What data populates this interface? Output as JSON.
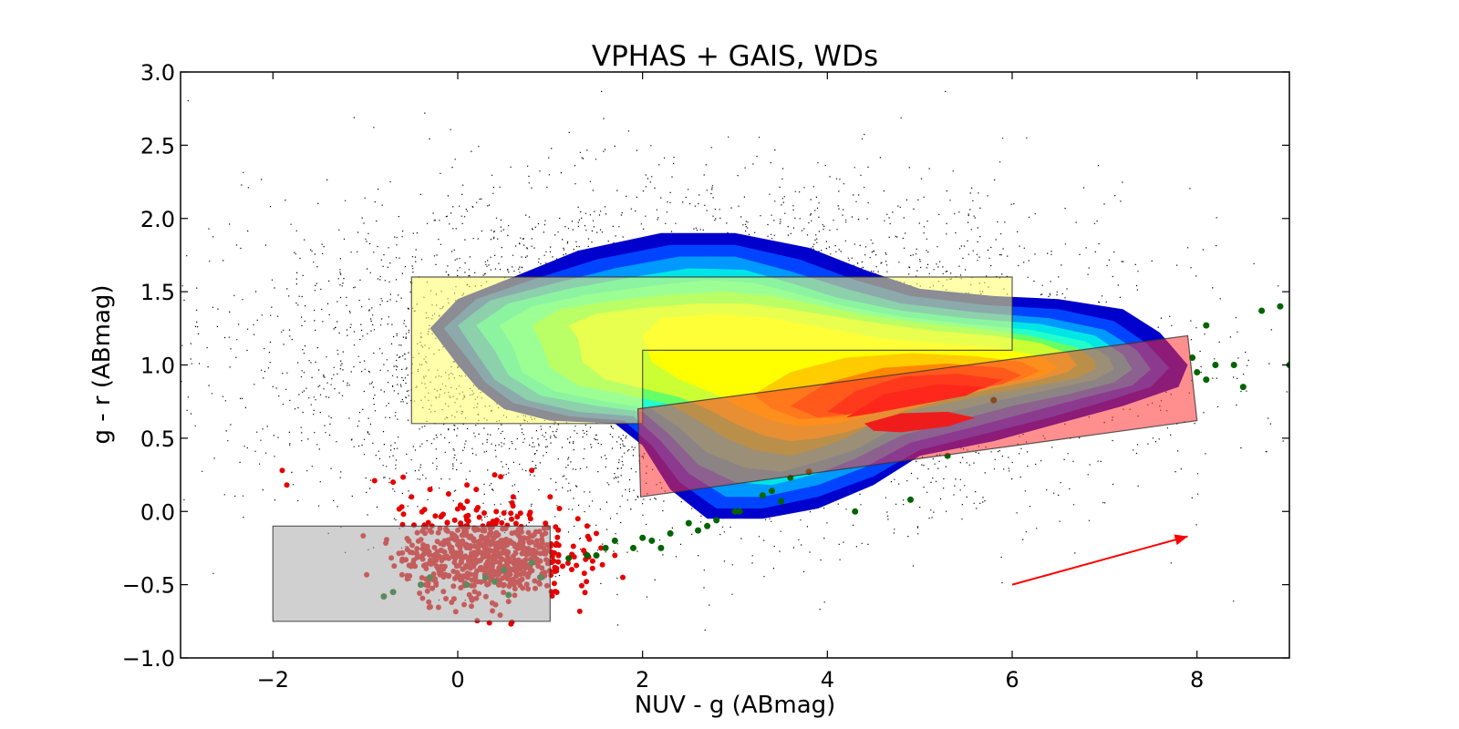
{
  "chart_data": {
    "type": "scatter",
    "title": "VPHAS + GAIS, WDs",
    "xlabel": "NUV - g (ABmag)",
    "ylabel": "g - r (ABmag)",
    "xlim": [
      -3,
      9
    ],
    "ylim": [
      -1.0,
      3.0
    ],
    "x_ticks": [
      -2,
      0,
      2,
      4,
      6,
      8
    ],
    "y_ticks": [
      -1.0,
      -0.5,
      0.0,
      0.5,
      1.0,
      1.5,
      2.0,
      2.5,
      3.0
    ],
    "x_tick_labels": [
      "−2",
      "0",
      "2",
      "4",
      "6",
      "8"
    ],
    "y_tick_labels": [
      "−1.0",
      "−0.5",
      "0.0",
      "0.5",
      "1.0",
      "1.5",
      "2.0",
      "2.5",
      "3.0"
    ],
    "grid": false,
    "legend": "none",
    "colors": {
      "background_points": "#000000",
      "red_points": "#e60000",
      "green_points": "#006400",
      "contour_levels": [
        "#0000cc",
        "#0044ff",
        "#0099ff",
        "#00e6e6",
        "#22ffcc",
        "#66ff66",
        "#ccff33",
        "#ffff00",
        "#ffcc00",
        "#ff8800",
        "#ff4400",
        "#ff1a00",
        "#dd0000"
      ],
      "yellow_box": "#ffff66",
      "grey_box": "#aaaaaa",
      "red_box": "#ff3333",
      "reddening_arrow": "#ff0000"
    },
    "density_contours": [
      [
        [
          0.0,
          1.0
        ],
        [
          -0.3,
          1.25
        ],
        [
          0.0,
          1.45
        ],
        [
          0.6,
          1.6
        ],
        [
          1.3,
          1.78
        ],
        [
          2.2,
          1.9
        ],
        [
          3.0,
          1.9
        ],
        [
          3.8,
          1.8
        ],
        [
          4.4,
          1.65
        ],
        [
          5.0,
          1.52
        ],
        [
          5.8,
          1.47
        ],
        [
          6.5,
          1.45
        ],
        [
          7.2,
          1.38
        ],
        [
          7.6,
          1.22
        ],
        [
          7.9,
          1.0
        ],
        [
          7.8,
          0.85
        ],
        [
          7.2,
          0.72
        ],
        [
          6.5,
          0.6
        ],
        [
          5.8,
          0.48
        ],
        [
          5.0,
          0.38
        ],
        [
          4.5,
          0.18
        ],
        [
          3.9,
          0.02
        ],
        [
          3.3,
          -0.05
        ],
        [
          2.7,
          -0.05
        ],
        [
          2.3,
          0.15
        ],
        [
          2.0,
          0.45
        ],
        [
          1.7,
          0.6
        ],
        [
          1.0,
          0.62
        ],
        [
          0.5,
          0.7
        ],
        [
          0.2,
          0.85
        ]
      ],
      [
        [
          0.1,
          1.05
        ],
        [
          -0.15,
          1.25
        ],
        [
          0.2,
          1.45
        ],
        [
          0.8,
          1.58
        ],
        [
          1.5,
          1.72
        ],
        [
          2.3,
          1.82
        ],
        [
          3.0,
          1.82
        ],
        [
          3.7,
          1.72
        ],
        [
          4.3,
          1.58
        ],
        [
          4.9,
          1.47
        ],
        [
          5.7,
          1.41
        ],
        [
          6.5,
          1.38
        ],
        [
          7.1,
          1.3
        ],
        [
          7.45,
          1.15
        ],
        [
          7.7,
          0.98
        ],
        [
          7.5,
          0.85
        ],
        [
          7.0,
          0.75
        ],
        [
          6.4,
          0.64
        ],
        [
          5.7,
          0.53
        ],
        [
          5.0,
          0.42
        ],
        [
          4.5,
          0.24
        ],
        [
          3.9,
          0.1
        ],
        [
          3.3,
          0.02
        ],
        [
          2.8,
          0.02
        ],
        [
          2.4,
          0.2
        ],
        [
          2.1,
          0.45
        ],
        [
          1.8,
          0.62
        ],
        [
          1.2,
          0.65
        ],
        [
          0.6,
          0.74
        ],
        [
          0.3,
          0.88
        ]
      ],
      [
        [
          0.2,
          1.08
        ],
        [
          0.0,
          1.27
        ],
        [
          0.35,
          1.44
        ],
        [
          1.0,
          1.55
        ],
        [
          1.7,
          1.66
        ],
        [
          2.4,
          1.74
        ],
        [
          3.0,
          1.74
        ],
        [
          3.6,
          1.64
        ],
        [
          4.2,
          1.52
        ],
        [
          4.8,
          1.42
        ],
        [
          5.6,
          1.36
        ],
        [
          6.4,
          1.32
        ],
        [
          7.0,
          1.24
        ],
        [
          7.35,
          1.1
        ],
        [
          7.5,
          0.97
        ],
        [
          7.3,
          0.86
        ],
        [
          6.8,
          0.78
        ],
        [
          6.2,
          0.68
        ],
        [
          5.6,
          0.58
        ],
        [
          4.9,
          0.47
        ],
        [
          4.4,
          0.3
        ],
        [
          3.9,
          0.18
        ],
        [
          3.3,
          0.1
        ],
        [
          2.9,
          0.1
        ],
        [
          2.5,
          0.26
        ],
        [
          2.2,
          0.48
        ],
        [
          1.9,
          0.65
        ],
        [
          1.3,
          0.68
        ],
        [
          0.75,
          0.76
        ],
        [
          0.4,
          0.9
        ]
      ],
      [
        [
          0.4,
          1.1
        ],
        [
          0.2,
          1.27
        ],
        [
          0.55,
          1.42
        ],
        [
          1.2,
          1.52
        ],
        [
          1.9,
          1.6
        ],
        [
          2.5,
          1.66
        ],
        [
          3.1,
          1.65
        ],
        [
          3.6,
          1.56
        ],
        [
          4.1,
          1.46
        ],
        [
          4.8,
          1.37
        ],
        [
          5.5,
          1.32
        ],
        [
          6.3,
          1.28
        ],
        [
          6.9,
          1.2
        ],
        [
          7.2,
          1.07
        ],
        [
          7.3,
          0.97
        ],
        [
          7.1,
          0.88
        ],
        [
          6.6,
          0.8
        ],
        [
          6.0,
          0.72
        ],
        [
          5.4,
          0.62
        ],
        [
          4.8,
          0.52
        ],
        [
          4.3,
          0.36
        ],
        [
          3.9,
          0.26
        ],
        [
          3.4,
          0.18
        ],
        [
          3.0,
          0.2
        ],
        [
          2.6,
          0.32
        ],
        [
          2.3,
          0.52
        ],
        [
          2.0,
          0.68
        ],
        [
          1.5,
          0.72
        ],
        [
          0.9,
          0.79
        ],
        [
          0.55,
          0.93
        ]
      ],
      [
        [
          0.6,
          1.12
        ],
        [
          0.45,
          1.27
        ],
        [
          0.8,
          1.4
        ],
        [
          1.4,
          1.48
        ],
        [
          2.1,
          1.54
        ],
        [
          2.7,
          1.58
        ],
        [
          3.2,
          1.56
        ],
        [
          3.7,
          1.48
        ],
        [
          4.2,
          1.4
        ],
        [
          4.8,
          1.33
        ],
        [
          5.5,
          1.28
        ],
        [
          6.2,
          1.24
        ],
        [
          6.8,
          1.16
        ],
        [
          7.05,
          1.05
        ],
        [
          7.1,
          0.97
        ],
        [
          6.9,
          0.9
        ],
        [
          6.4,
          0.83
        ],
        [
          5.8,
          0.75
        ],
        [
          5.2,
          0.66
        ],
        [
          4.7,
          0.56
        ],
        [
          4.3,
          0.42
        ],
        [
          3.9,
          0.34
        ],
        [
          3.5,
          0.27
        ],
        [
          3.1,
          0.3
        ],
        [
          2.7,
          0.4
        ],
        [
          2.4,
          0.57
        ],
        [
          2.1,
          0.7
        ],
        [
          1.6,
          0.75
        ],
        [
          1.05,
          0.82
        ],
        [
          0.7,
          0.95
        ]
      ],
      [
        [
          0.9,
          1.15
        ],
        [
          0.8,
          1.27
        ],
        [
          1.1,
          1.38
        ],
        [
          1.7,
          1.44
        ],
        [
          2.3,
          1.48
        ],
        [
          2.9,
          1.5
        ],
        [
          3.4,
          1.47
        ],
        [
          3.9,
          1.41
        ],
        [
          4.4,
          1.34
        ],
        [
          5.0,
          1.29
        ],
        [
          5.6,
          1.25
        ],
        [
          6.2,
          1.2
        ],
        [
          6.7,
          1.12
        ],
        [
          6.9,
          1.03
        ],
        [
          6.9,
          0.97
        ],
        [
          6.7,
          0.91
        ],
        [
          6.2,
          0.85
        ],
        [
          5.6,
          0.78
        ],
        [
          5.0,
          0.7
        ],
        [
          4.5,
          0.6
        ],
        [
          4.2,
          0.5
        ],
        [
          3.9,
          0.43
        ],
        [
          3.6,
          0.38
        ],
        [
          3.2,
          0.42
        ],
        [
          2.9,
          0.5
        ],
        [
          2.6,
          0.62
        ],
        [
          2.3,
          0.73
        ],
        [
          1.8,
          0.8
        ],
        [
          1.3,
          0.86
        ],
        [
          1.0,
          0.98
        ]
      ],
      [
        [
          1.3,
          1.18
        ],
        [
          1.2,
          1.27
        ],
        [
          1.5,
          1.35
        ],
        [
          2.0,
          1.39
        ],
        [
          2.6,
          1.42
        ],
        [
          3.1,
          1.42
        ],
        [
          3.6,
          1.38
        ],
        [
          4.1,
          1.33
        ],
        [
          4.6,
          1.28
        ],
        [
          5.2,
          1.23
        ],
        [
          5.8,
          1.2
        ],
        [
          6.3,
          1.15
        ],
        [
          6.6,
          1.08
        ],
        [
          6.7,
          1.0
        ],
        [
          6.6,
          0.95
        ],
        [
          6.3,
          0.9
        ],
        [
          5.8,
          0.84
        ],
        [
          5.3,
          0.77
        ],
        [
          4.8,
          0.68
        ],
        [
          4.5,
          0.6
        ],
        [
          4.2,
          0.54
        ],
        [
          3.9,
          0.5
        ],
        [
          3.6,
          0.48
        ],
        [
          3.3,
          0.52
        ],
        [
          3.0,
          0.6
        ],
        [
          2.7,
          0.7
        ],
        [
          2.4,
          0.78
        ],
        [
          2.0,
          0.84
        ],
        [
          1.6,
          0.9
        ],
        [
          1.35,
          1.02
        ]
      ],
      [
        [
          2.0,
          1.2
        ],
        [
          2.2,
          1.32
        ],
        [
          2.8,
          1.35
        ],
        [
          3.4,
          1.32
        ],
        [
          4.0,
          1.25
        ],
        [
          4.6,
          1.18
        ],
        [
          5.2,
          1.15
        ],
        [
          5.8,
          1.12
        ],
        [
          6.3,
          1.06
        ],
        [
          6.5,
          0.98
        ],
        [
          6.3,
          0.92
        ],
        [
          5.8,
          0.86
        ],
        [
          5.2,
          0.8
        ],
        [
          4.7,
          0.72
        ],
        [
          4.4,
          0.65
        ],
        [
          4.1,
          0.6
        ],
        [
          3.7,
          0.58
        ],
        [
          3.4,
          0.62
        ],
        [
          3.1,
          0.7
        ],
        [
          2.8,
          0.8
        ],
        [
          2.4,
          0.9
        ],
        [
          2.1,
          1.02
        ]
      ],
      [
        [
          3.2,
          0.8
        ],
        [
          3.6,
          0.95
        ],
        [
          4.2,
          1.05
        ],
        [
          4.9,
          1.08
        ],
        [
          5.6,
          1.06
        ],
        [
          6.1,
          1.02
        ],
        [
          6.3,
          0.96
        ],
        [
          6.1,
          0.9
        ],
        [
          5.6,
          0.84
        ],
        [
          5.0,
          0.78
        ],
        [
          4.5,
          0.7
        ],
        [
          4.1,
          0.64
        ],
        [
          3.7,
          0.63
        ],
        [
          3.4,
          0.7
        ]
      ],
      [
        [
          3.6,
          0.72
        ],
        [
          4.0,
          0.88
        ],
        [
          4.6,
          0.98
        ],
        [
          5.3,
          1.01
        ],
        [
          5.9,
          0.98
        ],
        [
          6.1,
          0.93
        ],
        [
          5.9,
          0.87
        ],
        [
          5.4,
          0.81
        ],
        [
          4.8,
          0.74
        ],
        [
          4.3,
          0.67
        ],
        [
          3.9,
          0.64
        ]
      ],
      [
        [
          4.0,
          0.68
        ],
        [
          4.3,
          0.82
        ],
        [
          4.8,
          0.92
        ],
        [
          5.4,
          0.94
        ],
        [
          5.9,
          0.9
        ],
        [
          5.7,
          0.84
        ],
        [
          5.2,
          0.78
        ],
        [
          4.6,
          0.71
        ],
        [
          4.2,
          0.66
        ]
      ],
      [
        [
          4.2,
          0.64
        ],
        [
          4.6,
          0.8
        ],
        [
          5.2,
          0.87
        ],
        [
          5.7,
          0.85
        ],
        [
          5.5,
          0.79
        ],
        [
          5.0,
          0.73
        ],
        [
          4.5,
          0.67
        ]
      ],
      [
        [
          4.4,
          0.6
        ],
        [
          4.8,
          0.67
        ],
        [
          5.3,
          0.68
        ],
        [
          5.6,
          0.64
        ],
        [
          5.3,
          0.58
        ],
        [
          4.8,
          0.54
        ],
        [
          4.5,
          0.55
        ]
      ]
    ],
    "shaded_regions": [
      {
        "fill": "#ffff66",
        "points": [
          [
            -0.5,
            1.6
          ],
          [
            6.0,
            1.6
          ],
          [
            6.0,
            1.1
          ],
          [
            2.0,
            1.1
          ],
          [
            2.0,
            0.6
          ],
          [
            -0.5,
            0.6
          ]
        ]
      },
      {
        "fill": "#aaaaaa",
        "points": [
          [
            -2.0,
            -0.1
          ],
          [
            1.0,
            -0.1
          ],
          [
            1.0,
            -0.75
          ],
          [
            -2.0,
            -0.75
          ]
        ]
      },
      {
        "fill": "#ff3333",
        "points": [
          [
            1.95,
            0.7
          ],
          [
            7.9,
            1.2
          ],
          [
            8.0,
            0.62
          ],
          [
            1.98,
            0.1
          ]
        ]
      }
    ],
    "reddening_arrow": {
      "x": [
        6.0,
        7.9
      ],
      "y": [
        -0.5,
        -0.17
      ]
    },
    "green_points": {
      "x": [
        8.1,
        8.2,
        8.4,
        8.5,
        8.7,
        8.9,
        9.0,
        8.1,
        8.0,
        7.95,
        3.0,
        3.4,
        3.6,
        3.8,
        4.3,
        4.9,
        5.3,
        5.8,
        3.5,
        2.8,
        2.7,
        2.6,
        2.5,
        2.3,
        2.2,
        2.1,
        2.0,
        1.9,
        1.7,
        1.6,
        1.5,
        1.4,
        1.2,
        0.9,
        0.8,
        0.5,
        0.3,
        0.1,
        -0.3,
        -0.4,
        -0.7,
        -0.8,
        0.55,
        0.4,
        3.05,
        3.3
      ],
      "y": [
        1.27,
        1.0,
        1.0,
        0.85,
        1.37,
        1.4,
        1.0,
        0.9,
        0.95,
        1.05,
        0.0,
        0.14,
        0.23,
        0.27,
        0.0,
        0.08,
        0.38,
        0.76,
        0.07,
        -0.06,
        -0.1,
        -0.13,
        -0.08,
        -0.15,
        -0.25,
        -0.2,
        -0.18,
        -0.25,
        -0.2,
        -0.25,
        -0.3,
        -0.3,
        -0.32,
        -0.45,
        -0.35,
        -0.4,
        -0.45,
        -0.5,
        -0.45,
        -0.5,
        -0.55,
        -0.58,
        -0.57,
        -0.48,
        0.0,
        0.11
      ]
    },
    "red_points_summary": "dense cluster centred near NUV-g 0.3, g-r -0.3 with scattered outliers",
    "red_points": {
      "x": [
        -1.9,
        -1.85,
        -0.9,
        -0.7,
        -0.5,
        -0.3,
        -0.1,
        0.1,
        0.2,
        0.4,
        0.6,
        0.8,
        1.0,
        1.1,
        1.3,
        1.4,
        1.5,
        1.55,
        1.7
      ],
      "y": [
        0.28,
        0.18,
        0.21,
        0.2,
        0.1,
        0.15,
        0.12,
        0.18,
        0.15,
        0.25,
        0.1,
        0.28,
        0.1,
        0.02,
        -0.05,
        -0.1,
        -0.15,
        -0.25,
        -0.3
      ],
      "cluster": {
        "x_mean": 0.3,
        "x_sd": 0.45,
        "y_mean": -0.3,
        "y_sd": 0.15,
        "count": 700
      }
    },
    "background_points_summary": {
      "count": 30000,
      "x_mean": 2.5,
      "x_sd": 2.3,
      "y_mean": 1.05,
      "y_sd": 0.55
    }
  }
}
